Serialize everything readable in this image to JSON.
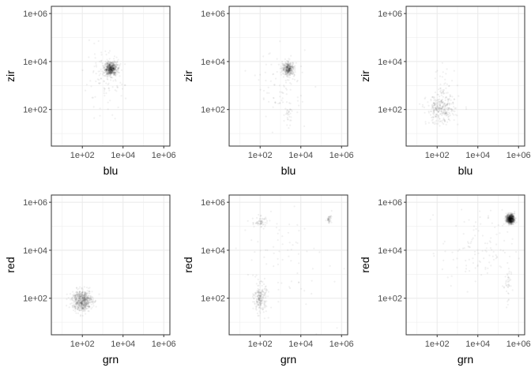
{
  "colors": {
    "panel_border": "#333333",
    "grid": "#ebebeb",
    "point": "#000000",
    "tick_text": "#4d4d4d"
  },
  "chart_data": [
    {
      "type": "scatter",
      "xlabel": "blu",
      "ylabel": "zir",
      "log_x": true,
      "log_y": true,
      "xlim": [
        3,
        2000000
      ],
      "ylim": [
        3,
        2000000
      ],
      "grid": true,
      "point_alpha": 0.06,
      "x_ticks": [
        "1e+02",
        "1e+04",
        "1e+06"
      ],
      "y_ticks": [
        "1e+02",
        "1e+04",
        "1e+06"
      ],
      "clusters": [
        {
          "center": [
            2500,
            5000
          ],
          "spread": [
            0.15,
            0.14
          ],
          "count": 600
        },
        {
          "center": [
            1200,
            1500
          ],
          "spread": [
            0.5,
            0.6
          ],
          "count": 120
        }
      ]
    },
    {
      "type": "scatter",
      "xlabel": "blu",
      "ylabel": "zir",
      "log_x": true,
      "log_y": true,
      "xlim": [
        3,
        2000000
      ],
      "ylim": [
        3,
        2000000
      ],
      "grid": true,
      "point_alpha": 0.06,
      "x_ticks": [
        "1e+02",
        "1e+04",
        "1e+06"
      ],
      "y_ticks": [
        "1e+02",
        "1e+04",
        "1e+06"
      ],
      "clusters": [
        {
          "center": [
            2500,
            5000
          ],
          "spread": [
            0.15,
            0.14
          ],
          "count": 350
        },
        {
          "center": [
            1200,
            1000
          ],
          "spread": [
            0.6,
            0.7
          ],
          "count": 90
        },
        {
          "center": [
            2500,
            70
          ],
          "spread": [
            0.08,
            0.25
          ],
          "count": 30
        }
      ]
    },
    {
      "type": "scatter",
      "xlabel": "blu",
      "ylabel": "zir",
      "log_x": true,
      "log_y": true,
      "xlim": [
        3,
        2000000
      ],
      "ylim": [
        3,
        2000000
      ],
      "grid": true,
      "point_alpha": 0.06,
      "x_ticks": [
        "1e+02",
        "1e+04",
        "1e+06"
      ],
      "y_ticks": [
        "1e+02",
        "1e+04",
        "1e+06"
      ],
      "clusters": [
        {
          "center": [
            150,
            100
          ],
          "spread": [
            0.35,
            0.3
          ],
          "count": 300
        },
        {
          "center": [
            250,
            700
          ],
          "spread": [
            0.3,
            0.5
          ],
          "count": 40
        }
      ]
    },
    {
      "type": "scatter",
      "xlabel": "grn",
      "ylabel": "red",
      "log_x": true,
      "log_y": true,
      "xlim": [
        3,
        2000000
      ],
      "ylim": [
        3,
        2000000
      ],
      "grid": true,
      "point_alpha": 0.06,
      "x_ticks": [
        "1e+02",
        "1e+04",
        "1e+06"
      ],
      "y_ticks": [
        "1e+02",
        "1e+04",
        "1e+06"
      ],
      "clusters": [
        {
          "center": [
            100,
            80
          ],
          "spread": [
            0.25,
            0.22
          ],
          "count": 600
        }
      ]
    },
    {
      "type": "scatter",
      "xlabel": "grn",
      "ylabel": "red",
      "log_x": true,
      "log_y": true,
      "xlim": [
        3,
        2000000
      ],
      "ylim": [
        3,
        2000000
      ],
      "grid": true,
      "point_alpha": 0.06,
      "x_ticks": [
        "1e+02",
        "1e+04",
        "1e+06"
      ],
      "y_ticks": [
        "1e+02",
        "1e+04",
        "1e+06"
      ],
      "clusters": [
        {
          "center": [
            100,
            100
          ],
          "spread": [
            0.15,
            0.3
          ],
          "count": 200
        },
        {
          "center": [
            100,
            150000
          ],
          "spread": [
            0.2,
            0.12
          ],
          "count": 60
        },
        {
          "center": [
            250000,
            200000
          ],
          "spread": [
            0.06,
            0.08
          ],
          "count": 40
        },
        {
          "center": [
            1000,
            3000
          ],
          "spread": [
            1.2,
            1.2
          ],
          "count": 80
        }
      ]
    },
    {
      "type": "scatter",
      "xlabel": "grn",
      "ylabel": "red",
      "log_x": true,
      "log_y": true,
      "xlim": [
        3,
        2000000
      ],
      "ylim": [
        3,
        2000000
      ],
      "grid": true,
      "point_alpha": 0.06,
      "x_ticks": [
        "1e+02",
        "1e+04",
        "1e+06"
      ],
      "y_ticks": [
        "1e+02",
        "1e+04",
        "1e+06"
      ],
      "clusters": [
        {
          "center": [
            400000,
            200000
          ],
          "spread": [
            0.1,
            0.1
          ],
          "count": 700
        },
        {
          "center": [
            300000,
            300
          ],
          "spread": [
            0.08,
            0.5
          ],
          "count": 40
        },
        {
          "center": [
            10000,
            10000
          ],
          "spread": [
            0.9,
            0.8
          ],
          "count": 120
        }
      ]
    }
  ]
}
